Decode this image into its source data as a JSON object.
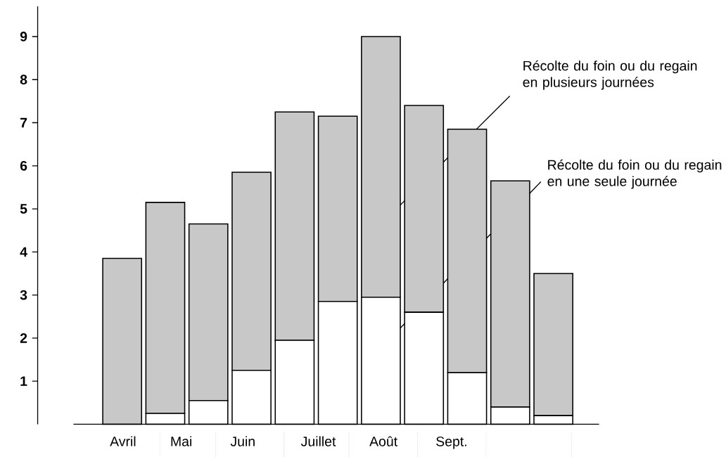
{
  "chart_data": {
    "type": "bar",
    "stacked": true,
    "categories": [
      null,
      null,
      null,
      null,
      null,
      null,
      null,
      null,
      null,
      null,
      null
    ],
    "series": [
      {
        "name": "Récolte du foin ou du regain en une seule journée",
        "color": "#ffffff",
        "values": [
          0,
          0.25,
          0.55,
          1.25,
          1.95,
          2.85,
          2.95,
          2.6,
          1.2,
          0.4,
          0.2
        ]
      },
      {
        "name": "Récolte du foin ou du regain en plusieurs journées",
        "color": "#c8c8c8",
        "values": [
          3.85,
          4.9,
          4.1,
          4.6,
          5.3,
          4.3,
          6.05,
          4.8,
          5.65,
          5.25,
          3.3
        ]
      }
    ],
    "ylim": [
      0,
      9.7
    ],
    "yticks": [
      1,
      2,
      3,
      4,
      5,
      6,
      7,
      8,
      9
    ],
    "annotations": [
      "Avril",
      "Mai",
      "Juin",
      "Juillet",
      "Août",
      "Sept."
    ]
  }
}
